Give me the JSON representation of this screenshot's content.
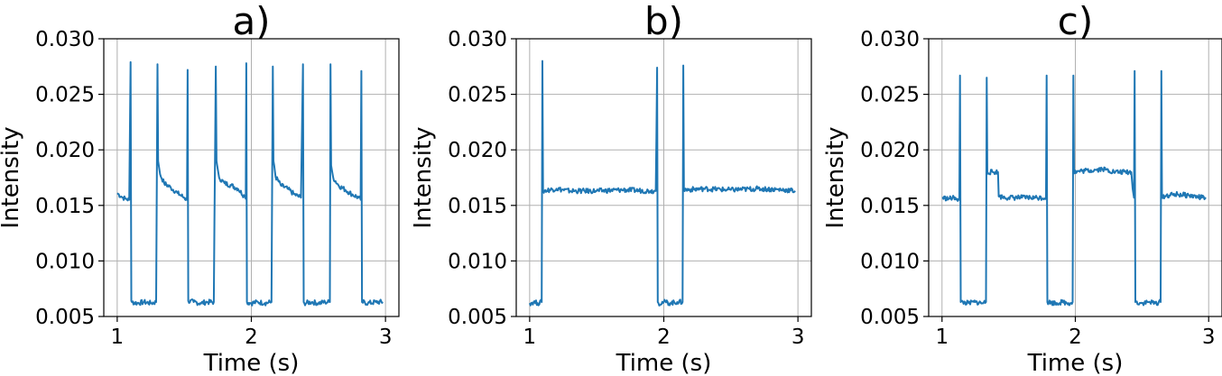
{
  "figure": {
    "line_color": "#1f77b4"
  },
  "chart_data": [
    {
      "type": "line",
      "title": "a)",
      "xlabel": "Time (s)",
      "ylabel": "Intensity",
      "xlim": [
        0.9,
        3.1
      ],
      "ylim": [
        0.005,
        0.03
      ],
      "xticks": [
        1,
        2,
        3
      ],
      "xtick_labels": [
        "1",
        "2",
        "3"
      ],
      "yticks": [
        0.005,
        0.01,
        0.015,
        0.02,
        0.025,
        0.03
      ],
      "ytick_labels": [
        "0.005",
        "0.010",
        "0.015",
        "0.020",
        "0.025",
        "0.030"
      ],
      "grid": true,
      "series": [
        {
          "x": [
            1.0,
            1.03,
            1.06,
            1.09,
            1.1,
            1.105,
            1.11,
            1.15,
            1.2,
            1.25,
            1.29,
            1.3,
            1.305,
            1.31,
            1.32,
            1.35,
            1.4,
            1.45,
            1.5,
            1.52,
            1.525,
            1.53,
            1.57,
            1.62,
            1.67,
            1.72,
            1.735,
            1.74,
            1.745,
            1.76,
            1.8,
            1.85,
            1.9,
            1.95,
            1.958,
            1.962,
            1.967,
            2.0,
            2.05,
            2.1,
            2.15,
            2.16,
            2.165,
            2.17,
            2.18,
            2.22,
            2.27,
            2.32,
            2.37,
            2.385,
            2.39,
            2.395,
            2.45,
            2.5,
            2.55,
            2.585,
            2.59,
            2.595,
            2.6,
            2.61,
            2.65,
            2.7,
            2.75,
            2.8,
            2.815,
            2.82,
            2.825,
            2.87,
            2.93,
            2.98
          ],
          "y": [
            0.0161,
            0.0158,
            0.0156,
            0.0155,
            0.0279,
            0.0064,
            0.0063,
            0.0062,
            0.0063,
            0.0062,
            0.0063,
            0.0277,
            0.019,
            0.0186,
            0.0178,
            0.017,
            0.0166,
            0.0161,
            0.0157,
            0.0155,
            0.0272,
            0.0064,
            0.0063,
            0.0062,
            0.0063,
            0.0063,
            0.0275,
            0.019,
            0.0186,
            0.0175,
            0.017,
            0.0168,
            0.0165,
            0.0158,
            0.0156,
            0.0278,
            0.0063,
            0.0062,
            0.0063,
            0.0062,
            0.0063,
            0.0275,
            0.019,
            0.0186,
            0.0176,
            0.0168,
            0.0165,
            0.016,
            0.0157,
            0.0277,
            0.0063,
            0.0062,
            0.0063,
            0.0062,
            0.0063,
            0.0063,
            0.0277,
            0.0186,
            0.0182,
            0.0175,
            0.0168,
            0.0164,
            0.016,
            0.0157,
            0.0155,
            0.0271,
            0.0063,
            0.0062,
            0.0063,
            0.0063
          ]
        }
      ]
    },
    {
      "type": "line",
      "title": "b)",
      "xlabel": "Time (s)",
      "ylabel": "Intensity",
      "xlim": [
        0.9,
        3.1
      ],
      "ylim": [
        0.005,
        0.03
      ],
      "xticks": [
        1,
        2,
        3
      ],
      "xtick_labels": [
        "1",
        "2",
        "3"
      ],
      "yticks": [
        0.005,
        0.01,
        0.015,
        0.02,
        0.025,
        0.03
      ],
      "ytick_labels": [
        "0.005",
        "0.010",
        "0.015",
        "0.020",
        "0.025",
        "0.030"
      ],
      "grid": true,
      "series": [
        {
          "x": [
            1.0,
            1.03,
            1.06,
            1.09,
            1.095,
            1.1,
            1.2,
            1.3,
            1.5,
            1.7,
            1.9,
            1.94,
            1.945,
            1.95,
            1.955,
            1.96,
            2.0,
            2.05,
            2.1,
            2.14,
            2.145,
            2.15,
            2.3,
            2.5,
            2.7,
            2.9,
            2.98
          ],
          "y": [
            0.0062,
            0.0063,
            0.0062,
            0.0063,
            0.028,
            0.0163,
            0.0165,
            0.0163,
            0.0163,
            0.0164,
            0.0163,
            0.0163,
            0.021,
            0.0274,
            0.0063,
            0.0062,
            0.0063,
            0.0062,
            0.0063,
            0.0063,
            0.0276,
            0.0164,
            0.0165,
            0.0164,
            0.0165,
            0.0164,
            0.0163
          ]
        }
      ]
    },
    {
      "type": "line",
      "title": "c)",
      "xlabel": "Time (s)",
      "ylabel": "Intensity",
      "xlim": [
        0.9,
        3.1
      ],
      "ylim": [
        0.005,
        0.03
      ],
      "xticks": [
        1,
        2,
        3
      ],
      "xtick_labels": [
        "1",
        "2",
        "3"
      ],
      "yticks": [
        0.005,
        0.01,
        0.015,
        0.02,
        0.025,
        0.03
      ],
      "ytick_labels": [
        "0.005",
        "0.010",
        "0.015",
        "0.020",
        "0.025",
        "0.030"
      ],
      "grid": true,
      "series": [
        {
          "x": [
            1.0,
            1.05,
            1.1,
            1.13,
            1.135,
            1.14,
            1.2,
            1.25,
            1.3,
            1.33,
            1.335,
            1.34,
            1.4,
            1.42,
            1.425,
            1.5,
            1.6,
            1.7,
            1.78,
            1.785,
            1.79,
            1.85,
            1.9,
            1.95,
            1.98,
            1.985,
            1.99,
            2.05,
            2.15,
            2.2,
            2.3,
            2.4,
            2.42,
            2.43,
            2.44,
            2.445,
            2.45,
            2.5,
            2.55,
            2.6,
            2.64,
            2.645,
            2.65,
            2.75,
            2.85,
            2.95,
            2.98
          ],
          "y": [
            0.0157,
            0.0156,
            0.0157,
            0.0155,
            0.0267,
            0.0063,
            0.0062,
            0.0063,
            0.0062,
            0.0063,
            0.0265,
            0.018,
            0.018,
            0.018,
            0.0158,
            0.0157,
            0.0157,
            0.0157,
            0.0157,
            0.0267,
            0.0063,
            0.0062,
            0.0063,
            0.0062,
            0.0063,
            0.0267,
            0.018,
            0.0181,
            0.0182,
            0.0183,
            0.018,
            0.018,
            0.018,
            0.0165,
            0.0157,
            0.0271,
            0.0063,
            0.0062,
            0.0063,
            0.0062,
            0.0063,
            0.0271,
            0.0158,
            0.016,
            0.0159,
            0.0157,
            0.0157
          ]
        }
      ]
    }
  ]
}
